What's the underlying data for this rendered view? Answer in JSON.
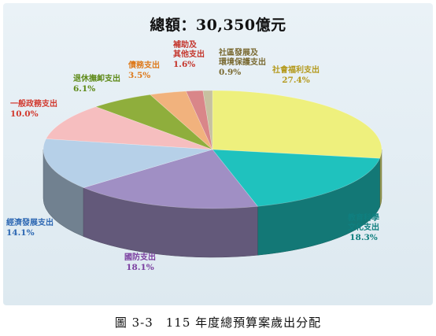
{
  "title": "總額：30,350億元",
  "caption": "圖 3-3　115 年度總預算案歲出分配",
  "chart_data": {
    "type": "pie",
    "title": "總額：30,350億元",
    "total": "30,350億元",
    "slices": [
      {
        "name": "社會福利支出",
        "value": 27.4,
        "pct_label": "27.4%",
        "color": "#eef07d",
        "text_color": "#b49a1e",
        "label_lines": [
          "社會福利支出"
        ]
      },
      {
        "name": "教育科學文化支出",
        "value": 18.3,
        "pct_label": "18.3%",
        "color": "#1fc2be",
        "text_color": "#0f7f7f",
        "label_lines": [
          "教育科學",
          "文化支出"
        ]
      },
      {
        "name": "國防支出",
        "value": 18.1,
        "pct_label": "18.1%",
        "color": "#a08fc4",
        "text_color": "#7b3fa0",
        "label_lines": [
          "國防支出"
        ]
      },
      {
        "name": "經濟發展支出",
        "value": 14.1,
        "pct_label": "14.1%",
        "color": "#b6d0e8",
        "text_color": "#2e68b3",
        "label_lines": [
          "經濟發展支出"
        ]
      },
      {
        "name": "一般政務支出",
        "value": 10.0,
        "pct_label": "10.0%",
        "color": "#f6bebf",
        "text_color": "#d23a2f",
        "label_lines": [
          "一般政務支出"
        ]
      },
      {
        "name": "退休撫卹支出",
        "value": 6.1,
        "pct_label": "6.1%",
        "color": "#8fae3c",
        "text_color": "#5e8a18",
        "label_lines": [
          "退休撫卹支出"
        ]
      },
      {
        "name": "債務支出",
        "value": 3.5,
        "pct_label": "3.5%",
        "color": "#f1b27d",
        "text_color": "#de7a1c",
        "label_lines": [
          "債務支出"
        ]
      },
      {
        "name": "補助及其他支出",
        "value": 1.6,
        "pct_label": "1.6%",
        "color": "#d98689",
        "text_color": "#c4352c",
        "label_lines": [
          "補助及",
          "其他支出"
        ]
      },
      {
        "name": "社區發展及環境保護支出",
        "value": 0.9,
        "pct_label": "0.9%",
        "color": "#c7c1a0",
        "text_color": "#7a6a32",
        "label_lines": [
          "社區發展及",
          "環境保護支出"
        ]
      }
    ]
  }
}
